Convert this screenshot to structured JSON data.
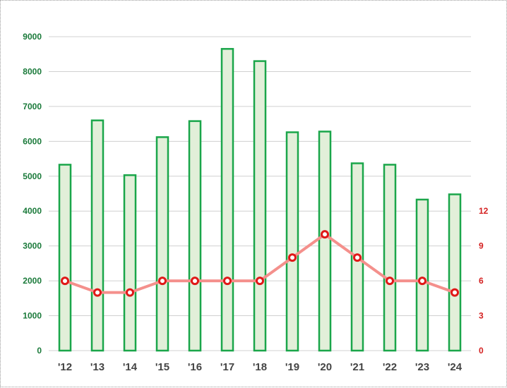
{
  "chart_data": {
    "type": "bar",
    "categories": [
      "'12",
      "'13",
      "'14",
      "'15",
      "'16",
      "'17",
      "'18",
      "'19",
      "'20",
      "'21",
      "'22",
      "'23",
      "'24"
    ],
    "series": [
      {
        "type": "bar",
        "axis": "left",
        "values": [
          5330,
          6600,
          5030,
          6120,
          6580,
          8650,
          8300,
          6260,
          6280,
          5370,
          5330,
          4330,
          4480
        ]
      },
      {
        "type": "line",
        "axis": "right",
        "values": [
          6,
          5,
          5,
          6,
          6,
          6,
          6,
          8,
          10,
          8,
          6,
          6,
          5
        ]
      }
    ],
    "y_left": {
      "ylim": [
        0,
        9000
      ],
      "ticks": [
        "0",
        "1000",
        "2000",
        "3000",
        "4000",
        "5000",
        "6000",
        "7000",
        "8000",
        "9000"
      ]
    },
    "y_right": {
      "ylim": [
        0,
        27
      ],
      "ticks": [
        "0",
        "3",
        "6",
        "9",
        "12"
      ]
    },
    "grid": true,
    "legend": "none",
    "colors": {
      "bar_fill": "#e2efd9",
      "bar_stroke": "#1aa64a",
      "line": "#f4908c",
      "marker_stroke": "#e01818",
      "left_ticks": "#1a7a3a",
      "right_ticks": "#d42020",
      "x_ticks": "#444444",
      "grid": "#d0d0d0"
    }
  }
}
